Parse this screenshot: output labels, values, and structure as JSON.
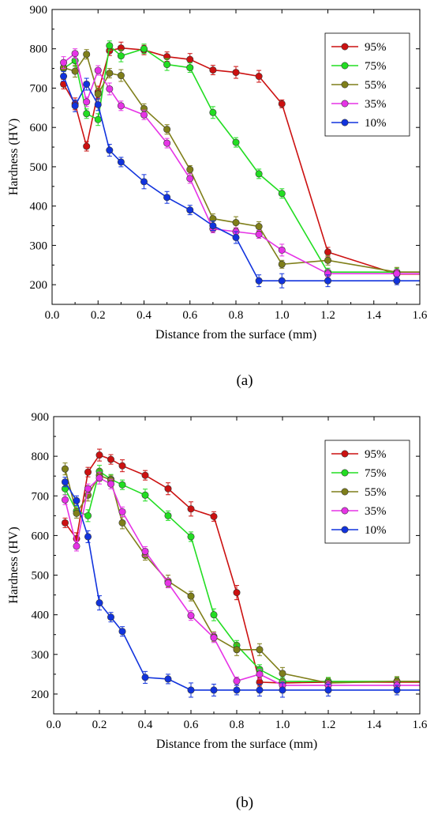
{
  "figure": {
    "panel_a_label": "(a)",
    "panel_b_label": "(b)"
  },
  "chart_data": [
    {
      "type": "line",
      "panel": "a",
      "xlabel": "Distance from the surface (mm)",
      "ylabel": "Hardness (HV)",
      "xlim": [
        0,
        1.6
      ],
      "ylim": [
        150,
        900
      ],
      "xticks": [
        "0.0",
        "0.2",
        "0.4",
        "0.6",
        "0.8",
        "1.0",
        "1.2",
        "1.4",
        "1.6"
      ],
      "yticks": [
        "200",
        "300",
        "400",
        "500",
        "600",
        "700",
        "800",
        "900"
      ],
      "legend_position": "top-right",
      "grid": false,
      "series": [
        {
          "name": "95%",
          "color": "#cc1111",
          "points": [
            [
              0.05,
              710
            ],
            [
              0.1,
              660
            ],
            [
              0.15,
              552
            ],
            [
              0.2,
              690
            ],
            [
              0.25,
              795
            ],
            [
              0.3,
              802
            ],
            [
              0.4,
              797
            ],
            [
              0.5,
              780
            ],
            [
              0.6,
              773
            ],
            [
              0.7,
              746
            ],
            [
              0.8,
              740
            ],
            [
              0.9,
              730
            ],
            [
              1.0,
              660
            ],
            [
              1.2,
              283
            ],
            [
              1.5,
              227
            ],
            [
              1.6,
              227
            ]
          ],
          "errors": [
            12,
            15,
            12,
            15,
            12,
            15,
            12,
            12,
            15,
            12,
            15,
            15,
            10,
            12,
            8,
            0
          ]
        },
        {
          "name": "75%",
          "color": "#22dd22",
          "points": [
            [
              0.05,
              750
            ],
            [
              0.1,
              770
            ],
            [
              0.15,
              635
            ],
            [
              0.2,
              620
            ],
            [
              0.25,
              808
            ],
            [
              0.3,
              782
            ],
            [
              0.4,
              800
            ],
            [
              0.5,
              760
            ],
            [
              0.6,
              752
            ],
            [
              0.7,
              638
            ],
            [
              0.8,
              562
            ],
            [
              0.9,
              482
            ],
            [
              1.0,
              432
            ],
            [
              1.2,
              232
            ],
            [
              1.5,
              232
            ],
            [
              1.6,
              232
            ]
          ],
          "errors": [
            15,
            15,
            12,
            15,
            12,
            15,
            12,
            15,
            12,
            15,
            12,
            12,
            12,
            10,
            10,
            0
          ]
        },
        {
          "name": "55%",
          "color": "#7f7f1a",
          "points": [
            [
              0.05,
              752
            ],
            [
              0.1,
              743
            ],
            [
              0.15,
              786
            ],
            [
              0.2,
              685
            ],
            [
              0.25,
              738
            ],
            [
              0.3,
              732
            ],
            [
              0.4,
              648
            ],
            [
              0.5,
              595
            ],
            [
              0.6,
              493
            ],
            [
              0.7,
              368
            ],
            [
              0.8,
              358
            ],
            [
              0.9,
              348
            ],
            [
              1.0,
              252
            ],
            [
              1.2,
              262
            ],
            [
              1.5,
              232
            ],
            [
              1.6,
              232
            ]
          ],
          "errors": [
            15,
            15,
            12,
            15,
            12,
            15,
            12,
            12,
            10,
            12,
            15,
            12,
            10,
            12,
            12,
            0
          ]
        },
        {
          "name": "35%",
          "color": "#e633e6",
          "points": [
            [
              0.05,
              765
            ],
            [
              0.1,
              788
            ],
            [
              0.15,
              665
            ],
            [
              0.2,
              745
            ],
            [
              0.25,
              698
            ],
            [
              0.3,
              655
            ],
            [
              0.4,
              632
            ],
            [
              0.5,
              560
            ],
            [
              0.6,
              470
            ],
            [
              0.7,
              342
            ],
            [
              0.8,
              335
            ],
            [
              0.9,
              328
            ],
            [
              1.0,
              288
            ],
            [
              1.2,
              228
            ],
            [
              1.5,
              228
            ],
            [
              1.6,
              228
            ]
          ],
          "errors": [
            15,
            12,
            12,
            12,
            15,
            12,
            12,
            12,
            12,
            10,
            10,
            10,
            15,
            10,
            10,
            0
          ]
        },
        {
          "name": "10%",
          "color": "#1133dd",
          "points": [
            [
              0.05,
              730
            ],
            [
              0.1,
              655
            ],
            [
              0.15,
              710
            ],
            [
              0.2,
              658
            ],
            [
              0.25,
              542
            ],
            [
              0.3,
              512
            ],
            [
              0.4,
              462
            ],
            [
              0.5,
              422
            ],
            [
              0.6,
              390
            ],
            [
              0.7,
              350
            ],
            [
              0.8,
              320
            ],
            [
              0.9,
              210
            ],
            [
              1.0,
              210
            ],
            [
              1.2,
              210
            ],
            [
              1.5,
              210
            ],
            [
              1.6,
              210
            ]
          ],
          "errors": [
            12,
            15,
            15,
            15,
            15,
            12,
            18,
            15,
            12,
            12,
            15,
            15,
            18,
            15,
            10,
            0
          ]
        }
      ]
    },
    {
      "type": "line",
      "panel": "b",
      "xlabel": "Distance from the surface (mm)",
      "ylabel": "Hardness (HV)",
      "xlim": [
        0,
        1.6
      ],
      "ylim": [
        150,
        900
      ],
      "xticks": [
        "0.0",
        "0.2",
        "0.4",
        "0.6",
        "0.8",
        "1.0",
        "1.2",
        "1.4",
        "1.6"
      ],
      "yticks": [
        "200",
        "300",
        "400",
        "500",
        "600",
        "700",
        "800",
        "900"
      ],
      "legend_position": "top-right",
      "grid": false,
      "series": [
        {
          "name": "95%",
          "color": "#cc1111",
          "points": [
            [
              0.05,
              632
            ],
            [
              0.1,
              592
            ],
            [
              0.15,
              760
            ],
            [
              0.2,
              803
            ],
            [
              0.25,
              792
            ],
            [
              0.3,
              776
            ],
            [
              0.4,
              752
            ],
            [
              0.5,
              718
            ],
            [
              0.6,
              667
            ],
            [
              0.7,
              648
            ],
            [
              0.8,
              456
            ],
            [
              0.9,
              230
            ],
            [
              1.0,
              228
            ],
            [
              1.2,
              230
            ],
            [
              1.5,
              230
            ],
            [
              1.6,
              230
            ]
          ],
          "errors": [
            12,
            15,
            12,
            15,
            12,
            15,
            12,
            15,
            18,
            12,
            18,
            10,
            10,
            10,
            10,
            0
          ]
        },
        {
          "name": "75%",
          "color": "#22dd22",
          "points": [
            [
              0.05,
              718
            ],
            [
              0.1,
              662
            ],
            [
              0.15,
              650
            ],
            [
              0.2,
              762
            ],
            [
              0.25,
              742
            ],
            [
              0.3,
              728
            ],
            [
              0.4,
              702
            ],
            [
              0.5,
              650
            ],
            [
              0.6,
              597
            ],
            [
              0.7,
              400
            ],
            [
              0.8,
              323
            ],
            [
              0.9,
              262
            ],
            [
              1.0,
              232
            ],
            [
              1.2,
              232
            ],
            [
              1.5,
              232
            ],
            [
              1.6,
              232
            ]
          ],
          "errors": [
            15,
            12,
            15,
            15,
            12,
            12,
            15,
            12,
            12,
            15,
            12,
            12,
            10,
            10,
            10,
            0
          ]
        },
        {
          "name": "55%",
          "color": "#7f7f1a",
          "points": [
            [
              0.05,
              768
            ],
            [
              0.1,
              656
            ],
            [
              0.15,
              702
            ],
            [
              0.2,
              752
            ],
            [
              0.25,
              740
            ],
            [
              0.3,
              632
            ],
            [
              0.4,
              550
            ],
            [
              0.5,
              485
            ],
            [
              0.6,
              447
            ],
            [
              0.7,
              345
            ],
            [
              0.8,
              312
            ],
            [
              0.9,
              312
            ],
            [
              1.0,
              252
            ],
            [
              1.2,
              228
            ],
            [
              1.5,
              232
            ],
            [
              1.6,
              232
            ]
          ],
          "errors": [
            15,
            12,
            15,
            15,
            12,
            15,
            12,
            15,
            12,
            12,
            15,
            15,
            15,
            12,
            12,
            0
          ]
        },
        {
          "name": "35%",
          "color": "#e633e6",
          "points": [
            [
              0.05,
              690
            ],
            [
              0.1,
              573
            ],
            [
              0.15,
              718
            ],
            [
              0.2,
              745
            ],
            [
              0.25,
              730
            ],
            [
              0.3,
              660
            ],
            [
              0.4,
              560
            ],
            [
              0.5,
              480
            ],
            [
              0.6,
              398
            ],
            [
              0.7,
              342
            ],
            [
              0.8,
              233
            ],
            [
              0.9,
              250
            ],
            [
              1.0,
              222
            ],
            [
              1.2,
              222
            ],
            [
              1.5,
              222
            ],
            [
              1.6,
              222
            ]
          ],
          "errors": [
            12,
            12,
            12,
            15,
            12,
            12,
            12,
            12,
            12,
            12,
            10,
            12,
            10,
            10,
            10,
            0
          ]
        },
        {
          "name": "10%",
          "color": "#1133dd",
          "points": [
            [
              0.05,
              735
            ],
            [
              0.1,
              688
            ],
            [
              0.15,
              597
            ],
            [
              0.2,
              430
            ],
            [
              0.25,
              394
            ],
            [
              0.3,
              358
            ],
            [
              0.4,
              242
            ],
            [
              0.5,
              238
            ],
            [
              0.6,
              210
            ],
            [
              0.7,
              210
            ],
            [
              0.8,
              210
            ],
            [
              0.9,
              210
            ],
            [
              1.0,
              210
            ],
            [
              1.2,
              210
            ],
            [
              1.5,
              210
            ],
            [
              1.6,
              210
            ]
          ],
          "errors": [
            12,
            12,
            15,
            18,
            12,
            12,
            15,
            12,
            18,
            15,
            12,
            15,
            18,
            15,
            12,
            0
          ]
        }
      ]
    }
  ]
}
